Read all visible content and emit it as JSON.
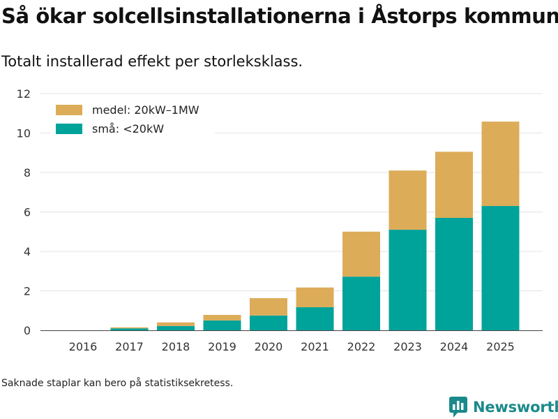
{
  "header": {
    "title": "Så ökar solcellsinstallationerna i Åstorps kommun",
    "subtitle": "Totalt installerad effekt per storleksklass."
  },
  "chart_data": {
    "type": "bar",
    "stacked": true,
    "categories": [
      "2016",
      "2017",
      "2018",
      "2019",
      "2020",
      "2021",
      "2022",
      "2023",
      "2024",
      "2025"
    ],
    "series": [
      {
        "name": "små: <20kW",
        "color": "#00a39a",
        "values": [
          0,
          0.1,
          0.22,
          0.5,
          0.75,
          1.17,
          2.72,
          5.1,
          5.7,
          6.3
        ]
      },
      {
        "name": "medel: 20kW–1MW",
        "color": "#dcac59",
        "values": [
          0,
          0.05,
          0.18,
          0.28,
          0.88,
          1.0,
          2.28,
          3.0,
          3.35,
          4.28
        ]
      }
    ],
    "legend_order": [
      "medel: 20kW–1MW",
      "små: <20kW"
    ],
    "legend_position": "top-left",
    "y_ticks": [
      "0",
      "2",
      "4",
      "6",
      "8",
      "10",
      "12"
    ],
    "ylim": [
      0,
      12
    ],
    "xlabel": "",
    "ylabel": "",
    "grid": true
  },
  "footer": {
    "note": "Saknade staplar kan bero på statistiksekretess.",
    "brand": "Newsworthy"
  },
  "colors": {
    "gridline": "#e3e3e3",
    "axis": "#444444",
    "brand": "#1b8a8b"
  }
}
